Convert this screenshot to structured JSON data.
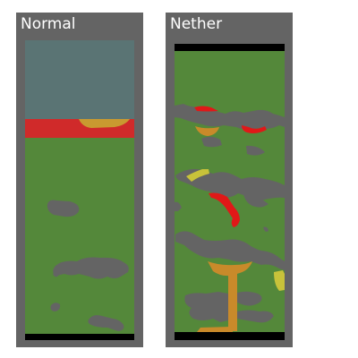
{
  "panels": [
    {
      "title": "Normal",
      "colors": {
        "frame": "#646464",
        "sky": "#5a7474",
        "ground": "#54883a",
        "cave": "#646464",
        "lava": "#d02a2a",
        "ore": "#c99a30",
        "bedrock": "#000000"
      }
    },
    {
      "title": "Nether",
      "colors": {
        "frame": "#646464",
        "ground": "#54883a",
        "cave": "#646464",
        "lava": "#e01818",
        "ore": "#c98a2a",
        "sulfur": "#c8c23a",
        "bedrock": "#000000"
      }
    }
  ]
}
